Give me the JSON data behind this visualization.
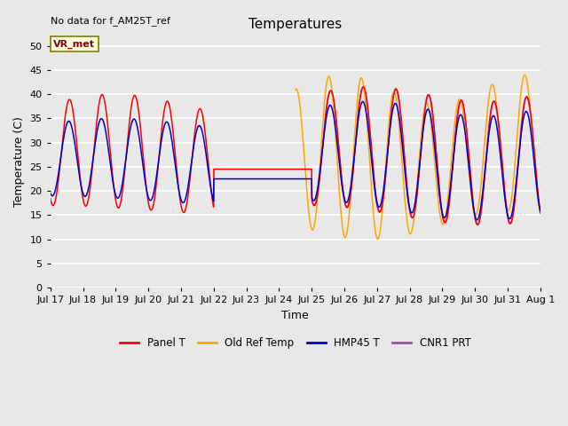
{
  "title": "Temperatures",
  "xlabel": "Time",
  "ylabel": "Temperature (C)",
  "note": "No data for f_AM25T_ref",
  "vr_met_label": "VR_met",
  "ylim": [
    0,
    52
  ],
  "yticks": [
    0,
    5,
    10,
    15,
    20,
    25,
    30,
    35,
    40,
    45,
    50
  ],
  "legend_labels": [
    "Panel T",
    "Old Ref Temp",
    "HMP45 T",
    "CNR1 PRT"
  ],
  "legend_colors": [
    "#ff0000",
    "#ffa500",
    "#0000cc",
    "#aa44bb"
  ],
  "panel_color": "#ff0000",
  "oldref_color": "#ffa500",
  "hmp45_color": "#0000cc",
  "cnr1_color": "#aa44bb",
  "fig_bg_color": "#e8e8e8",
  "plot_bg_color": "#e8e8e8",
  "n_points": 2000,
  "start_day": 17.0,
  "end_day": 32.0,
  "panel_flat_val": 24.5,
  "hmp45_flat_val": 22.5,
  "xtick_labels": [
    "Jul 17",
    "Jul 18",
    "Jul 19",
    "Jul 20",
    "Jul 21",
    "Jul 22",
    "Jul 23",
    "Jul 24",
    "Jul 25",
    "Jul 26",
    "Jul 27",
    "Jul 28",
    "Jul 29",
    "Jul 30",
    "Jul 31",
    "Aug 1"
  ],
  "xtick_positions": [
    17,
    18,
    19,
    20,
    21,
    22,
    23,
    24,
    25,
    26,
    27,
    28,
    29,
    30,
    31,
    32
  ]
}
